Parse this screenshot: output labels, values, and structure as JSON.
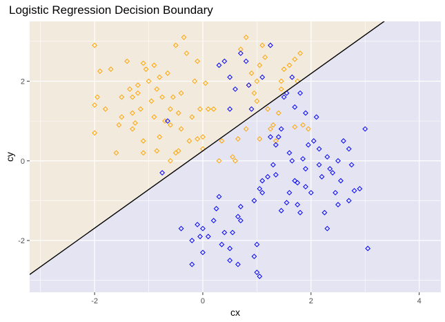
{
  "chart_data": {
    "type": "scatter",
    "title": "Logistic Regression Decision Boundary",
    "xlabel": "cx",
    "ylabel": "cy",
    "xlim": [
      -3.2,
      4.4
    ],
    "ylim": [
      -3.3,
      3.5
    ],
    "x_ticks": [
      -2,
      0,
      2,
      4
    ],
    "y_ticks": [
      -2,
      0,
      2
    ],
    "grid": true,
    "legend": "none",
    "marker": "diamond",
    "colors": {
      "panel": "#EBEBEB",
      "grid": "#FFFFFF",
      "region_class_0": "#FFE9C2",
      "region_class_1": "#D6D6FF",
      "class_0": "#FFA500",
      "class_1": "#0000FF",
      "boundary": "#000000"
    },
    "decision_boundary": {
      "slope": 0.97,
      "intercept": 0.25
    },
    "series": [
      {
        "color": "#FFA500",
        "points": [
          [
            -2.0,
            2.9
          ],
          [
            -1.9,
            2.25
          ],
          [
            -1.95,
            1.6
          ],
          [
            -2.0,
            1.4
          ],
          [
            -2.0,
            0.7
          ],
          [
            -1.7,
            2.3
          ],
          [
            -1.8,
            1.3
          ],
          [
            -1.6,
            0.2
          ],
          [
            -1.55,
            0.9
          ],
          [
            -1.5,
            1.1
          ],
          [
            -1.5,
            1.6
          ],
          [
            -1.4,
            2.5
          ],
          [
            -1.35,
            1.8
          ],
          [
            -1.3,
            1.2
          ],
          [
            -1.3,
            0.8
          ],
          [
            -1.25,
            0.95
          ],
          [
            -1.2,
            1.7
          ],
          [
            -1.2,
            1.9
          ],
          [
            -1.15,
            1.3
          ],
          [
            -1.1,
            2.45
          ],
          [
            -1.1,
            0.5
          ],
          [
            -1.1,
            0.2
          ],
          [
            -1.05,
            2.3
          ],
          [
            -1.0,
            2.0
          ],
          [
            -0.95,
            1.5
          ],
          [
            -0.9,
            1.1
          ],
          [
            -0.9,
            2.4
          ],
          [
            -0.85,
            1.8
          ],
          [
            -0.8,
            2.1
          ],
          [
            -0.8,
            0.6
          ],
          [
            -0.75,
            1.6
          ],
          [
            -0.7,
            1.0
          ],
          [
            -0.65,
            2.2
          ],
          [
            -0.6,
            1.3
          ],
          [
            -0.6,
            0.9
          ],
          [
            -0.55,
            1.6
          ],
          [
            -0.5,
            2.9
          ],
          [
            -0.5,
            0.2
          ],
          [
            -0.45,
            0.25
          ],
          [
            -0.45,
            1.2
          ],
          [
            -0.4,
            1.7
          ],
          [
            -0.35,
            3.1
          ],
          [
            -0.3,
            2.7
          ],
          [
            -0.25,
            0.5
          ],
          [
            -0.2,
            1.1
          ],
          [
            -0.15,
            2.0
          ],
          [
            -0.1,
            2.5
          ],
          [
            -0.1,
            0.55
          ],
          [
            -0.05,
            1.3
          ],
          [
            0.0,
            0.3
          ],
          [
            0.0,
            0.6
          ],
          [
            0.05,
            1.95
          ],
          [
            -0.85,
            0.25
          ],
          [
            -0.6,
            0.0
          ],
          [
            -1.3,
            1.6
          ],
          [
            -0.4,
            0.8
          ],
          [
            0.1,
            1.3
          ],
          [
            0.2,
            1.3
          ],
          [
            0.3,
            0.0
          ],
          [
            0.35,
            0.5
          ],
          [
            0.55,
            0.1
          ],
          [
            0.6,
            0.0
          ],
          [
            0.65,
            0.55
          ],
          [
            0.7,
            2.8
          ],
          [
            0.8,
            3.1
          ],
          [
            0.85,
            1.9
          ],
          [
            0.9,
            2.2
          ],
          [
            0.95,
            1.7
          ],
          [
            1.0,
            1.5
          ],
          [
            1.0,
            2.0
          ],
          [
            1.05,
            2.4
          ],
          [
            1.1,
            2.9
          ],
          [
            1.15,
            2.6
          ],
          [
            1.2,
            1.3
          ],
          [
            1.25,
            0.8
          ],
          [
            1.3,
            0.9
          ],
          [
            1.35,
            0.5
          ],
          [
            1.4,
            1.2
          ],
          [
            1.45,
            2.0
          ],
          [
            1.5,
            2.3
          ],
          [
            1.6,
            2.4
          ],
          [
            1.7,
            2.55
          ],
          [
            1.75,
            2.0
          ],
          [
            1.8,
            2.7
          ],
          [
            1.85,
            0.9
          ],
          [
            1.95,
            0.8
          ],
          [
            0.8,
            0.8
          ],
          [
            1.05,
            0.55
          ],
          [
            1.45,
            1.8
          ],
          [
            1.7,
            0.85
          ]
        ]
      },
      {
        "color": "#0000FF",
        "points": [
          [
            -0.75,
            -0.3
          ],
          [
            -0.65,
            1.0
          ],
          [
            -0.4,
            -1.7
          ],
          [
            -0.2,
            -2.0
          ],
          [
            -0.2,
            -2.6
          ],
          [
            -0.1,
            -1.6
          ],
          [
            -0.05,
            -1.9
          ],
          [
            0.0,
            -1.7
          ],
          [
            0.0,
            -2.3
          ],
          [
            0.1,
            -1.9
          ],
          [
            0.2,
            -1.5
          ],
          [
            0.25,
            -1.2
          ],
          [
            0.3,
            -0.9
          ],
          [
            0.35,
            -2.1
          ],
          [
            0.4,
            -1.8
          ],
          [
            0.5,
            -2.2
          ],
          [
            0.5,
            -2.5
          ],
          [
            0.55,
            -1.8
          ],
          [
            0.65,
            -1.4
          ],
          [
            0.65,
            -2.6
          ],
          [
            0.7,
            -1.5
          ],
          [
            0.8,
            2.5
          ],
          [
            0.85,
            1.9
          ],
          [
            0.9,
            1.3
          ],
          [
            0.95,
            -1.0
          ],
          [
            0.95,
            -2.4
          ],
          [
            1.0,
            -2.1
          ],
          [
            1.0,
            -2.8
          ],
          [
            1.05,
            -0.7
          ],
          [
            1.05,
            -2.9
          ],
          [
            1.1,
            -0.5
          ],
          [
            1.1,
            -0.8
          ],
          [
            1.2,
            -0.4
          ],
          [
            1.25,
            0.6
          ],
          [
            1.3,
            -0.1
          ],
          [
            1.35,
            0.4
          ],
          [
            1.4,
            0.6
          ],
          [
            1.45,
            0.8
          ],
          [
            1.5,
            1.6
          ],
          [
            1.55,
            1.7
          ],
          [
            1.6,
            0.2
          ],
          [
            1.6,
            -0.8
          ],
          [
            1.65,
            0.0
          ],
          [
            1.7,
            -0.5
          ],
          [
            1.75,
            -1.1
          ],
          [
            1.8,
            -1.3
          ],
          [
            1.85,
            0.05
          ],
          [
            1.9,
            -0.2
          ],
          [
            1.95,
            0.4
          ],
          [
            2.0,
            -0.8
          ],
          [
            2.05,
            0.5
          ],
          [
            2.1,
            1.1
          ],
          [
            2.15,
            0.3
          ],
          [
            2.2,
            -0.4
          ],
          [
            2.25,
            -1.3
          ],
          [
            2.3,
            0.1
          ],
          [
            2.35,
            -0.2
          ],
          [
            2.4,
            -0.3
          ],
          [
            2.45,
            -0.8
          ],
          [
            2.5,
            -1.1
          ],
          [
            2.55,
            -0.5
          ],
          [
            2.6,
            0.5
          ],
          [
            2.7,
            0.3
          ],
          [
            2.75,
            -0.1
          ],
          [
            2.8,
            -0.75
          ],
          [
            2.9,
            -0.7
          ],
          [
            3.0,
            0.8
          ],
          [
            3.05,
            -2.2
          ],
          [
            0.5,
            2.1
          ],
          [
            0.6,
            1.8
          ],
          [
            0.7,
            2.7
          ],
          [
            0.4,
            2.5
          ],
          [
            0.5,
            1.3
          ],
          [
            0.3,
            2.4
          ],
          [
            1.1,
            2.1
          ],
          [
            1.25,
            2.9
          ],
          [
            1.65,
            2.1
          ],
          [
            1.7,
            1.35
          ],
          [
            1.8,
            1.7
          ],
          [
            1.9,
            1.2
          ],
          [
            1.75,
            -0.55
          ],
          [
            1.45,
            -1.25
          ],
          [
            1.55,
            -1.05
          ],
          [
            1.9,
            -0.65
          ],
          [
            2.3,
            -1.7
          ],
          [
            2.7,
            -1.0
          ],
          [
            2.15,
            -0.1
          ],
          [
            2.5,
            0.0
          ],
          [
            1.35,
            -0.35
          ],
          [
            0.7,
            -1.15
          ]
        ]
      }
    ]
  }
}
